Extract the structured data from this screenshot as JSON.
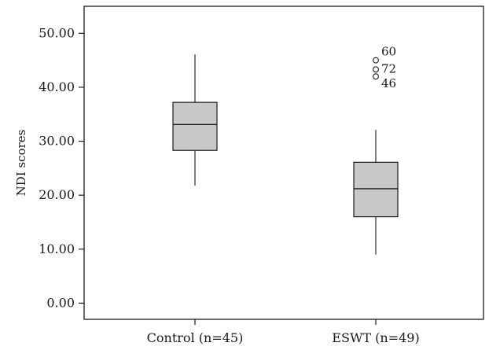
{
  "chart_data": {
    "type": "boxplot",
    "title": "",
    "xlabel": "",
    "ylabel": "NDI scores",
    "ylim": [
      -3,
      55
    ],
    "grid": false,
    "y_ticks": [
      0,
      10,
      20,
      30,
      40,
      50
    ],
    "y_tick_labels": [
      "0.00",
      "10.00",
      "20.00",
      "30.00",
      "40.00",
      "50.00"
    ],
    "categories": [
      "Control (n=45)",
      "ESWT (n=49)"
    ],
    "boxes": [
      {
        "category": "Control (n=45)",
        "whisker_low": 21.8,
        "q1": 28.3,
        "median": 33.1,
        "q3": 37.2,
        "whisker_high": 46.1,
        "outliers": []
      },
      {
        "category": "ESWT (n=49)",
        "whisker_low": 9.0,
        "q1": 16.0,
        "median": 21.2,
        "q3": 26.1,
        "whisker_high": 32.1,
        "outliers": [
          {
            "value": 45.0,
            "label": "60"
          },
          {
            "value": 43.3,
            "label": "72"
          },
          {
            "value": 42.0,
            "label": "46"
          }
        ]
      }
    ],
    "colors": {
      "box_fill": "#c8c8c8",
      "stroke": "#1a1a1a",
      "background": "#ffffff"
    }
  }
}
